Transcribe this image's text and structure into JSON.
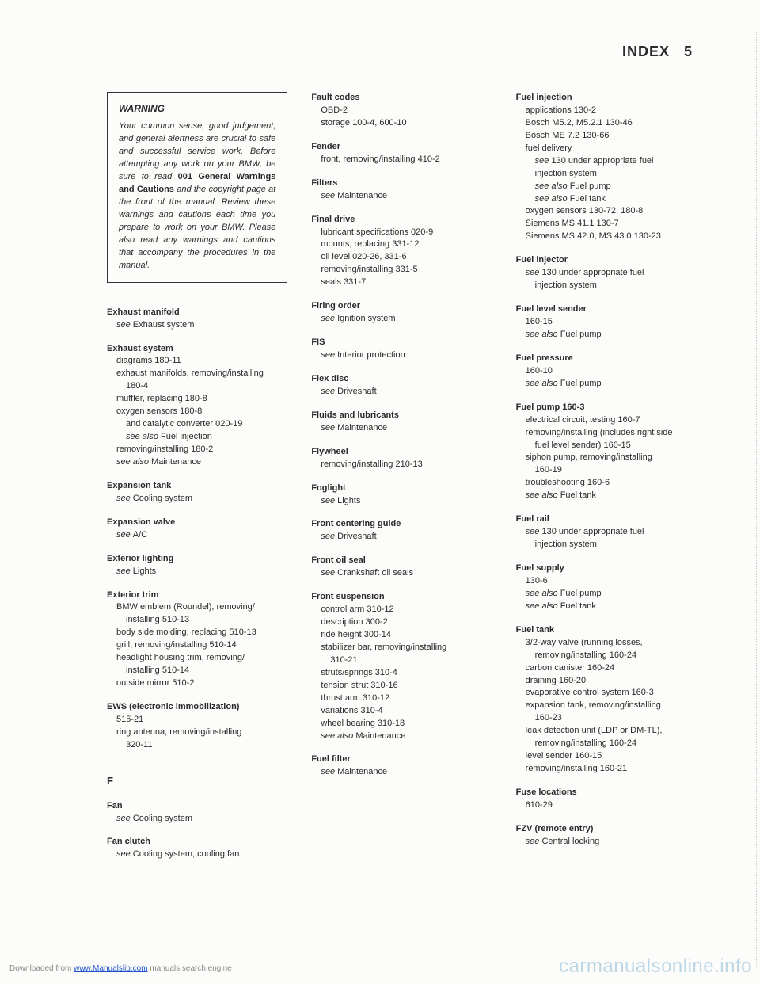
{
  "header": {
    "title": "INDEX",
    "page": "5"
  },
  "warning": {
    "title": "WARNING",
    "body_pre": "Your common sense, good judgement, and general alertness are crucial to safe and successful service work. Before attempting any work on your BMW, be sure to read ",
    "body_bold": "001 General Warnings and Cautions",
    "body_post": " and the copyright page at the front of the manual. Review these warnings and cautions each time you prepare to work on your BMW. Please also read any warnings and cautions that accompany the procedures in the manual."
  },
  "col1": [
    {
      "t": "Exhaust manifold",
      "lines": [
        {
          "txt": "see Exhaust system",
          "ital_prefix": "see "
        }
      ]
    },
    {
      "t": "Exhaust system",
      "lines": [
        {
          "txt": "diagrams 180-11"
        },
        {
          "txt": "exhaust manifolds, removing/installing"
        },
        {
          "txt": "180-4",
          "sub2": true
        },
        {
          "txt": "muffler, replacing 180-8"
        },
        {
          "txt": "oxygen sensors 180-8"
        },
        {
          "txt": "and catalytic converter 020-19",
          "sub2": true
        },
        {
          "txt": "see also Fuel injection",
          "sub2": true,
          "ital_prefix": "see also "
        },
        {
          "txt": "removing/installing 180-2"
        },
        {
          "txt": "see also Maintenance",
          "ital_prefix": "see also "
        }
      ]
    },
    {
      "t": "Expansion tank",
      "lines": [
        {
          "txt": "see Cooling system",
          "ital_prefix": "see "
        }
      ]
    },
    {
      "t": "Expansion valve",
      "lines": [
        {
          "txt": "see A/C",
          "ital_prefix": "see "
        }
      ]
    },
    {
      "t": "Exterior lighting",
      "lines": [
        {
          "txt": "see Lights",
          "ital_prefix": "see "
        }
      ]
    },
    {
      "t": "Exterior trim",
      "lines": [
        {
          "txt": "BMW emblem (Roundel), removing/"
        },
        {
          "txt": "installing 510-13",
          "sub2": true
        },
        {
          "txt": "body side molding, replacing 510-13"
        },
        {
          "txt": "grill, removing/installing 510-14"
        },
        {
          "txt": "headlight housing trim, removing/"
        },
        {
          "txt": "installing 510-14",
          "sub2": true
        },
        {
          "txt": "outside mirror 510-2"
        }
      ]
    },
    {
      "t": "EWS (electronic immobilization)",
      "lines": [
        {
          "txt": "515-21"
        },
        {
          "txt": "ring antenna, removing/installing"
        },
        {
          "txt": "320-11",
          "sub2": true
        }
      ]
    }
  ],
  "col1_section": "F",
  "col1b": [
    {
      "t": "Fan",
      "lines": [
        {
          "txt": "see Cooling system",
          "ital_prefix": "see "
        }
      ]
    },
    {
      "t": "Fan clutch",
      "lines": [
        {
          "txt": "see Cooling system, cooling fan",
          "ital_prefix": "see "
        }
      ]
    }
  ],
  "col2": [
    {
      "t": "Fault codes",
      "lines": [
        {
          "txt": "OBD-2"
        },
        {
          "txt": "storage 100-4, 600-10"
        }
      ]
    },
    {
      "t": "Fender",
      "lines": [
        {
          "txt": "front, removing/installing 410-2"
        }
      ]
    },
    {
      "t": "Filters",
      "lines": [
        {
          "txt": "see Maintenance",
          "ital_prefix": "see "
        }
      ]
    },
    {
      "t": "Final drive",
      "lines": [
        {
          "txt": "lubricant specifications 020-9"
        },
        {
          "txt": "mounts, replacing 331-12"
        },
        {
          "txt": "oil level 020-26, 331-6"
        },
        {
          "txt": "removing/installing 331-5"
        },
        {
          "txt": "seals 331-7"
        }
      ]
    },
    {
      "t": "Firing order",
      "lines": [
        {
          "txt": "see Ignition system",
          "ital_prefix": "see "
        }
      ]
    },
    {
      "t": "FIS",
      "lines": [
        {
          "txt": "see Interior protection",
          "ital_prefix": "see "
        }
      ]
    },
    {
      "t": "Flex disc",
      "lines": [
        {
          "txt": "see Driveshaft",
          "ital_prefix": "see "
        }
      ]
    },
    {
      "t": "Fluids and lubricants",
      "lines": [
        {
          "txt": "see Maintenance",
          "ital_prefix": "see "
        }
      ]
    },
    {
      "t": "Flywheel",
      "lines": [
        {
          "txt": "removing/installing 210-13"
        }
      ]
    },
    {
      "t": "Foglight",
      "lines": [
        {
          "txt": "see Lights",
          "ital_prefix": "see "
        }
      ]
    },
    {
      "t": "Front centering guide",
      "lines": [
        {
          "txt": "see Driveshaft",
          "ital_prefix": "see "
        }
      ]
    },
    {
      "t": "Front oil seal",
      "lines": [
        {
          "txt": "see Crankshaft oil seals",
          "ital_prefix": "see "
        }
      ]
    },
    {
      "t": "Front suspension",
      "lines": [
        {
          "txt": "control arm 310-12"
        },
        {
          "txt": "description 300-2"
        },
        {
          "txt": "ride height 300-14"
        },
        {
          "txt": "stabilizer bar, removing/installing"
        },
        {
          "txt": "310-21",
          "sub2": true
        },
        {
          "txt": "struts/springs 310-4"
        },
        {
          "txt": "tension strut 310-16"
        },
        {
          "txt": "thrust arm 310-12"
        },
        {
          "txt": "variations 310-4"
        },
        {
          "txt": "wheel bearing 310-18"
        },
        {
          "txt": "see also Maintenance",
          "ital_prefix": "see also "
        }
      ]
    },
    {
      "t": "Fuel filter",
      "lines": [
        {
          "txt": "see Maintenance",
          "ital_prefix": "see "
        }
      ]
    }
  ],
  "col3": [
    {
      "t": "Fuel injection",
      "lines": [
        {
          "txt": "applications 130-2"
        },
        {
          "txt": "Bosch M5.2, M5.2.1 130-46"
        },
        {
          "txt": "Bosch ME 7.2 130-66"
        },
        {
          "txt": "fuel delivery"
        },
        {
          "txt": "see 130 under appropriate fuel",
          "sub2": true,
          "ital_prefix": "see "
        },
        {
          "txt": "injection system",
          "sub2": true
        },
        {
          "txt": "see also Fuel pump",
          "sub2": true,
          "ital_prefix": "see also "
        },
        {
          "txt": "see also Fuel tank",
          "sub2": true,
          "ital_prefix": "see also "
        },
        {
          "txt": "oxygen sensors 130-72, 180-8"
        },
        {
          "txt": "Siemens MS 41.1 130-7"
        },
        {
          "txt": "Siemens MS 42.0, MS 43.0 130-23"
        }
      ]
    },
    {
      "t": "Fuel injector",
      "lines": [
        {
          "txt": "see 130 under appropriate fuel",
          "ital_prefix": "see "
        },
        {
          "txt": "injection system",
          "sub2": true
        }
      ]
    },
    {
      "t": "Fuel level sender",
      "lines": [
        {
          "txt": "160-15"
        },
        {
          "txt": "see also Fuel pump",
          "ital_prefix": "see also "
        }
      ]
    },
    {
      "t": "Fuel pressure",
      "lines": [
        {
          "txt": "160-10"
        },
        {
          "txt": "see also Fuel pump",
          "ital_prefix": "see also "
        }
      ]
    },
    {
      "t": "Fuel pump 160-3",
      "lines": [
        {
          "txt": "electrical circuit, testing 160-7"
        },
        {
          "txt": "removing/installing (includes right side"
        },
        {
          "txt": "fuel level sender) 160-15",
          "sub2": true
        },
        {
          "txt": "siphon pump, removing/installing"
        },
        {
          "txt": "160-19",
          "sub2": true
        },
        {
          "txt": "troubleshooting 160-6"
        },
        {
          "txt": "see also Fuel tank",
          "ital_prefix": "see also "
        }
      ]
    },
    {
      "t": "Fuel rail",
      "lines": [
        {
          "txt": "see 130 under appropriate fuel",
          "ital_prefix": "see "
        },
        {
          "txt": "injection system",
          "sub2": true
        }
      ]
    },
    {
      "t": "Fuel supply",
      "lines": [
        {
          "txt": "130-6"
        },
        {
          "txt": "see also Fuel pump",
          "ital_prefix": "see also "
        },
        {
          "txt": "see also Fuel tank",
          "ital_prefix": "see also "
        }
      ]
    },
    {
      "t": "Fuel tank",
      "lines": [
        {
          "txt": "3/2-way valve (running losses,"
        },
        {
          "txt": "removing/installing 160-24",
          "sub2": true
        },
        {
          "txt": "carbon canister 160-24"
        },
        {
          "txt": "draining 160-20"
        },
        {
          "txt": "evaporative control system 160-3"
        },
        {
          "txt": "expansion tank, removing/installing"
        },
        {
          "txt": "160-23",
          "sub2": true
        },
        {
          "txt": "leak detection unit (LDP or DM-TL),"
        },
        {
          "txt": "removing/installing 160-24",
          "sub2": true
        },
        {
          "txt": "level sender 160-15"
        },
        {
          "txt": "removing/installing 160-21"
        }
      ]
    },
    {
      "t": "Fuse locations",
      "lines": [
        {
          "txt": "610-29"
        }
      ]
    },
    {
      "t": "FZV (remote entry)",
      "lines": [
        {
          "txt": "see Central locking",
          "ital_prefix": "see "
        }
      ]
    }
  ],
  "footer": {
    "left_pre": "Downloaded from ",
    "left_link": "www.Manualslib.com",
    "left_post": " manuals search engine",
    "right": "carmanualsonline.info"
  }
}
